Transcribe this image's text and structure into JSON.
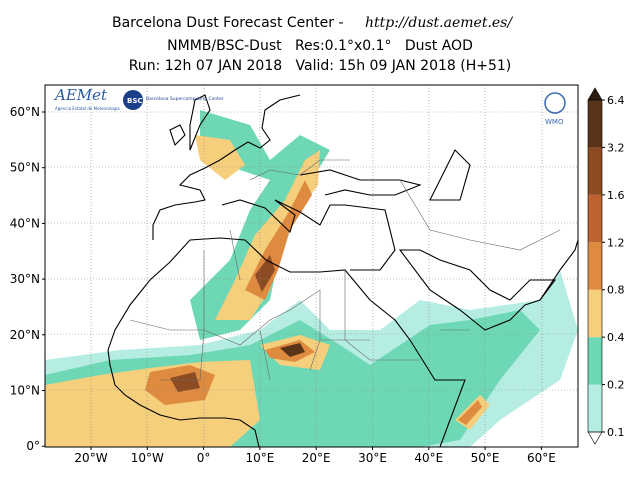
{
  "header": {
    "title": "Barcelona Dust Forecast Center - ",
    "url": "http://dust.aemet.es/",
    "line2": "NMMB/BSC-Dust   Res:0.1°x0.1°   Dust AOD",
    "line3": "Run: 12h 07 JAN 2018   Valid: 15h 09 JAN 2018 (H+51)"
  },
  "map": {
    "lat_labels": [
      "60°N",
      "50°N",
      "40°N",
      "30°N",
      "20°N",
      "10°N",
      "0°"
    ],
    "lon_labels": [
      "20°W",
      "10°W",
      "0°",
      "10°E",
      "20°E",
      "30°E",
      "40°E",
      "50°E",
      "60°E"
    ]
  },
  "logos": {
    "aemet": "AEMet",
    "aemet_sub": "Agencia Estatal de Meteorología",
    "bsc": "BSC",
    "bsc_sub": "Barcelona Supercomputing Center",
    "wmo": "WMO"
  },
  "colorbar": {
    "levels": [
      0.1,
      0.2,
      0.4,
      0.8,
      1.2,
      1.6,
      3.2,
      6.4
    ],
    "colors": [
      "#b5ede3",
      "#6ed8b6",
      "#f5cf7c",
      "#de8a3f",
      "#bd6330",
      "#8c4b23",
      "#5a3418"
    ],
    "over_color": "#2d1d0f"
  }
}
